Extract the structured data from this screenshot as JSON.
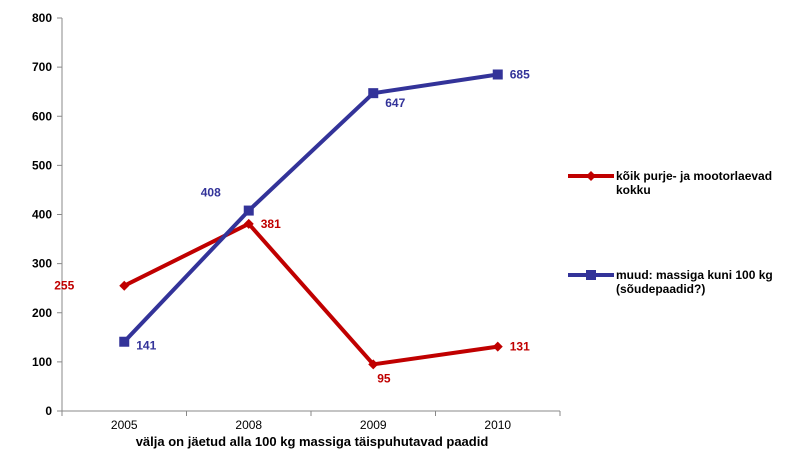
{
  "chart_data": {
    "type": "line",
    "categories": [
      "2005",
      "2008",
      "2009",
      "2010"
    ],
    "xlabel": "välja on jäetud alla 100 kg massiga täispuhutavad paadid",
    "ylabel": "",
    "ylim": [
      0,
      800
    ],
    "yticks": [
      "0",
      "100",
      "200",
      "300",
      "400",
      "500",
      "600",
      "700",
      "800"
    ],
    "grid": false,
    "legend_position": "right",
    "series": [
      {
        "name": "kõik purje- ja mootorlaevad kokku",
        "legend_lines": [
          "kõik purje- ja mootorlaevad",
          "kokku"
        ],
        "values": [
          255,
          381,
          95,
          131
        ],
        "labels": [
          "255",
          "381",
          "95",
          "131"
        ],
        "color": "#c00000",
        "marker": "diamond"
      },
      {
        "name": "muud: massiga kuni 100 kg (sõudepaadid?)",
        "legend_lines": [
          "muud: massiga kuni 100 kg",
          "(sõudepaadid?)"
        ],
        "values": [
          141,
          408,
          647,
          685
        ],
        "labels": [
          "141",
          "408",
          "647",
          "685"
        ],
        "color": "#333399",
        "marker": "square"
      }
    ]
  }
}
